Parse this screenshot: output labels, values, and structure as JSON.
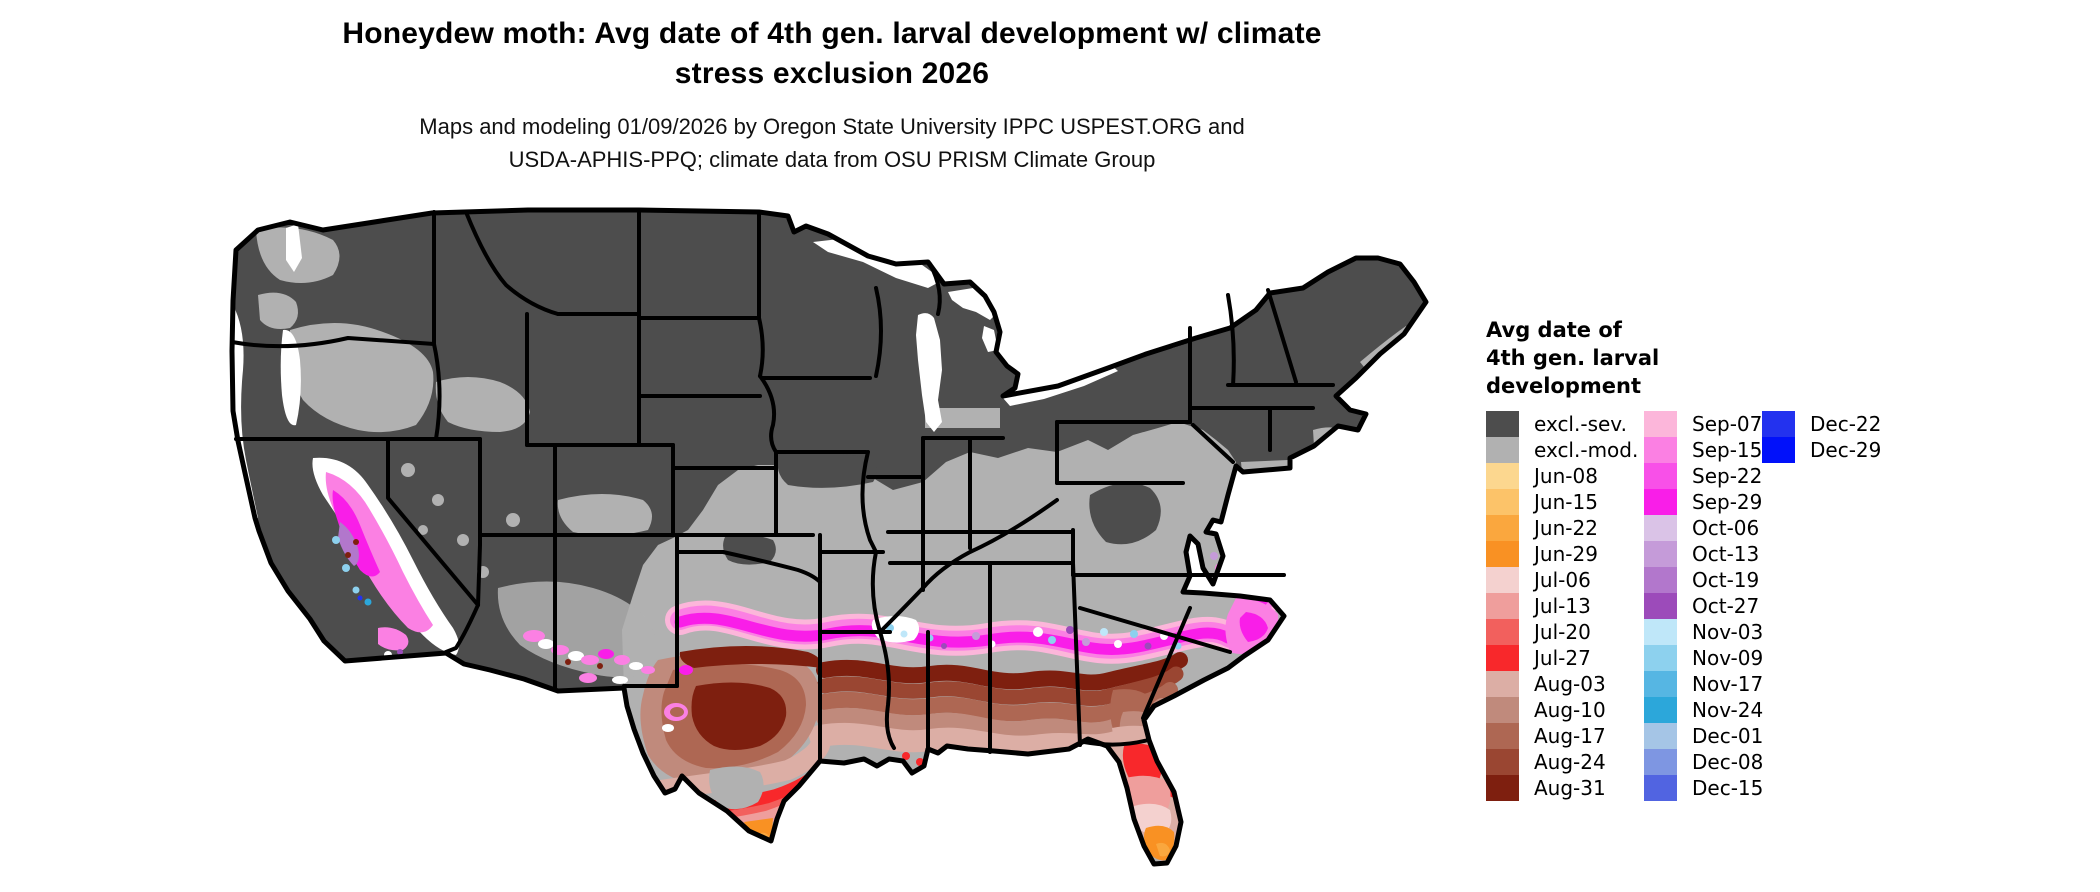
{
  "title": {
    "line1": "Honeydew moth: Avg date of 4th gen. larval development w/ climate",
    "line2": "stress exclusion 2026"
  },
  "subtitle": {
    "line1": "Maps and modeling 01/09/2026 by Oregon State University IPPC USPEST.ORG and",
    "line2": "USDA-APHIS-PPQ; climate data from OSU PRISM Climate Group"
  },
  "map": {
    "description": "Choropleth raster map of the contiguous United States showing average date of 4th generation larval development with climate stress exclusion"
  },
  "legend": {
    "title_lines": [
      "Avg date of",
      "4th gen. larval",
      "development"
    ],
    "columns": [
      [
        {
          "label": "excl.-sev.",
          "color": "#4d4d4d"
        },
        {
          "label": "excl.-mod.",
          "color": "#b1b1b1"
        },
        {
          "label": "Jun-08",
          "color": "#fcd78f"
        },
        {
          "label": "Jun-15",
          "color": "#fcc369"
        },
        {
          "label": "Jun-22",
          "color": "#faa73e"
        },
        {
          "label": "Jun-29",
          "color": "#f99123"
        },
        {
          "label": "Jul-06",
          "color": "#f4d1cf"
        },
        {
          "label": "Jul-13",
          "color": "#ef9e9c"
        },
        {
          "label": "Jul-20",
          "color": "#f2605d"
        },
        {
          "label": "Jul-27",
          "color": "#f8282b"
        },
        {
          "label": "Aug-03",
          "color": "#dcaea5"
        },
        {
          "label": "Aug-10",
          "color": "#c08a7c"
        },
        {
          "label": "Aug-17",
          "color": "#ae6753"
        },
        {
          "label": "Aug-24",
          "color": "#9a4632"
        },
        {
          "label": "Aug-31",
          "color": "#7e1f0f"
        }
      ],
      [
        {
          "label": "Sep-07",
          "color": "#fcb6da"
        },
        {
          "label": "Sep-15",
          "color": "#fb80e3"
        },
        {
          "label": "Sep-22",
          "color": "#f850e8"
        },
        {
          "label": "Sep-29",
          "color": "#f91ee8"
        },
        {
          "label": "Oct-06",
          "color": "#dac3e7"
        },
        {
          "label": "Oct-13",
          "color": "#c59bd9"
        },
        {
          "label": "Oct-19",
          "color": "#b277cc"
        },
        {
          "label": "Oct-27",
          "color": "#9c4bba"
        },
        {
          "label": "Nov-03",
          "color": "#bfe7f9"
        },
        {
          "label": "Nov-09",
          "color": "#8dd1ee"
        },
        {
          "label": "Nov-17",
          "color": "#56b6e3"
        },
        {
          "label": "Nov-24",
          "color": "#2ca7da"
        },
        {
          "label": "Dec-01",
          "color": "#a5c5e6"
        },
        {
          "label": "Dec-08",
          "color": "#7e96e2"
        },
        {
          "label": "Dec-15",
          "color": "#5164e1"
        }
      ],
      [
        {
          "label": "Dec-22",
          "color": "#2332ef"
        },
        {
          "label": "Dec-29",
          "color": "#0111fa"
        }
      ]
    ]
  }
}
